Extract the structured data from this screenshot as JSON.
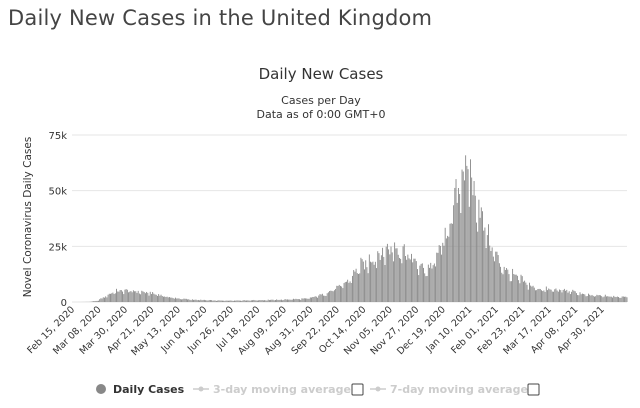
{
  "page": {
    "title": "Daily New Cases in the United Kingdom"
  },
  "colors": {
    "bar": "#999999",
    "bar_dark": "#888888",
    "grid": "#e6e6e6",
    "legend_inactive": "#cccccc",
    "text": "#333333"
  },
  "chart_data": {
    "type": "bar",
    "title": "Daily New Cases",
    "subtitle_lines": [
      "Cases per Day",
      "Data as of 0:00 GMT+0"
    ],
    "xlabel": "",
    "ylabel": "Novel Coronavirus Daily Cases",
    "ylim": [
      0,
      75000
    ],
    "y_ticks": [
      0,
      25000,
      50000,
      75000
    ],
    "y_tick_labels": [
      "0",
      "25k",
      "50k",
      "75k"
    ],
    "x_start_date": "2020-02-15",
    "x_end_date": "2021-05-21",
    "x_tick_labels": [
      "Feb 15, 2020",
      "Mar 08, 2020",
      "Mar 30, 2020",
      "Apr 21, 2020",
      "May 13, 2020",
      "Jun 04, 2020",
      "Jun 26, 2020",
      "Jul 18, 2020",
      "Aug 09, 2020",
      "Aug 31, 2020",
      "Sep 22, 2020",
      "Oct 14, 2020",
      "Nov 05, 2020",
      "Nov 27, 2020",
      "Dec 19, 2020",
      "Jan 10, 2021",
      "Feb 01, 2021",
      "Feb 23, 2021",
      "Mar 17, 2021",
      "Apr 08, 2021",
      "Apr 30, 2021"
    ],
    "grid": true,
    "legend_position": "bottom",
    "legend": [
      {
        "label": "Daily Cases",
        "active": true
      },
      {
        "label": "3-day moving average",
        "active": false
      },
      {
        "label": "7-day moving average",
        "active": false
      }
    ],
    "series": [
      {
        "name": "Daily Cases",
        "values_weekly": [
          0,
          10,
          60,
          500,
          2500,
          4500,
          5000,
          4800,
          4500,
          4000,
          3500,
          2500,
          1800,
          1400,
          1100,
          900,
          800,
          650,
          600,
          650,
          700,
          750,
          800,
          850,
          950,
          1000,
          1200,
          1300,
          1500,
          2500,
          3500,
          5500,
          7000,
          10000,
          15000,
          17000,
          20000,
          22000,
          24000,
          23000,
          21000,
          16000,
          14000,
          17000,
          26000,
          35000,
          55000,
          58000,
          45000,
          33000,
          22000,
          16000,
          12000,
          10500,
          8000,
          6000,
          5500,
          5300,
          5200,
          4800,
          4000,
          3000,
          2800,
          2700,
          2400,
          2300,
          2500
        ]
      }
    ]
  }
}
